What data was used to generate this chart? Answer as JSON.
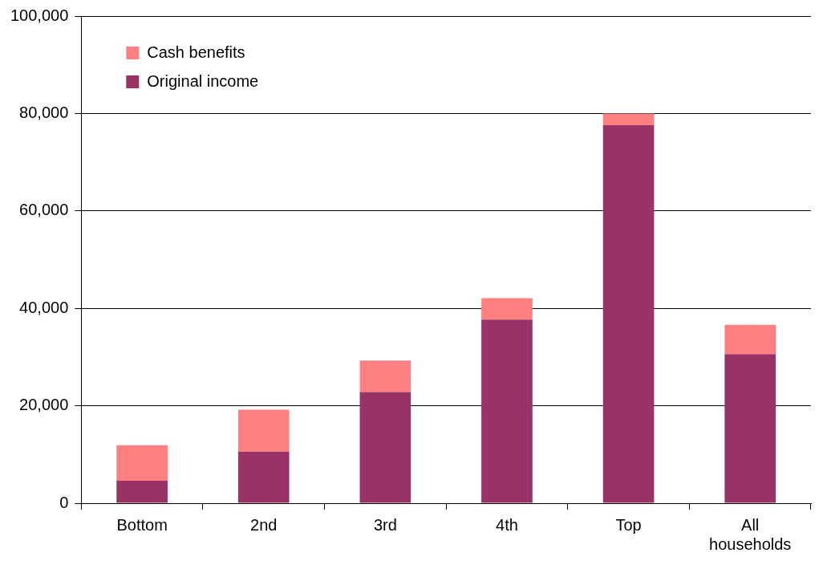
{
  "chart_data": {
    "type": "bar",
    "stacked": true,
    "categories": [
      "Bottom",
      "2nd",
      "3rd",
      "4th",
      "Top",
      "All households"
    ],
    "series": [
      {
        "name": "Original income",
        "color": "#993366",
        "values": [
          4600,
          10600,
          22800,
          37700,
          77600,
          30600
        ]
      },
      {
        "name": "Cash benefits",
        "color": "#ff8080",
        "values": [
          7300,
          8600,
          6500,
          4400,
          2400,
          6000
        ]
      }
    ],
    "ylim": [
      0,
      100000
    ],
    "yticks": [
      {
        "value": 0,
        "label": "0"
      },
      {
        "value": 20000,
        "label": "20,000"
      },
      {
        "value": 40000,
        "label": "40,000"
      },
      {
        "value": 60000,
        "label": "60,000"
      },
      {
        "value": 80000,
        "label": "80,000"
      },
      {
        "value": 100000,
        "label": "100,000"
      }
    ],
    "grid": "y",
    "legend": "top left"
  }
}
